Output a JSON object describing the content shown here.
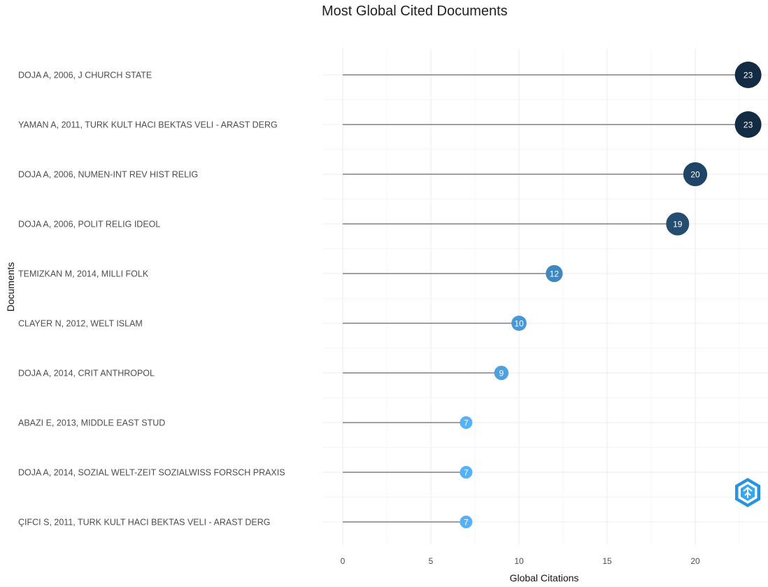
{
  "chart_data": {
    "type": "scatter",
    "title": "Most Global Cited Documents",
    "xlabel": "Global Citations",
    "ylabel": "Documents",
    "xlim": [
      0,
      23
    ],
    "xticks": [
      0,
      5,
      10,
      15,
      20
    ],
    "grid": true,
    "documents": [
      "DOJA A, 2006, J CHURCH STATE",
      "YAMAN A, 2011, TURK KULT HACI BEKTAS VELI - ARAST DERG",
      "DOJA A, 2006, NUMEN-INT REV HIST RELIG",
      "DOJA A, 2006, POLIT RELIG IDEOL",
      "TEMIZKAN M, 2014, MILLI FOLK",
      "CLAYER N, 2012, WELT ISLAM",
      "DOJA A, 2014, CRIT ANTHROPOL",
      "ABAZI E, 2013, MIDDLE EAST STUD",
      "DOJA A, 2014, SOZIAL WELT-ZEIT SOZIALWISS FORSCH PRAXIS",
      "ÇIFCI S, 2011, TURK KULT HACI BEKTAS VELI - ARAST DERG"
    ],
    "values": [
      23,
      23,
      20,
      19,
      12,
      10,
      9,
      7,
      7,
      7
    ],
    "color_scale": {
      "low": "#56b1f7",
      "high": "#132b43"
    },
    "stem_color": "#808080"
  }
}
